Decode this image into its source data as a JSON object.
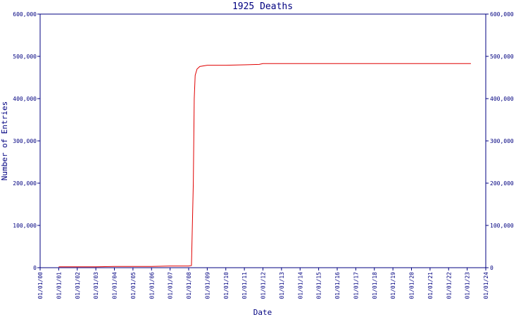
{
  "chart_data": {
    "type": "line",
    "title": "1925 Deaths",
    "x_label": "Date",
    "y_label": "Number of Entries",
    "x": [
      1,
      2,
      3,
      4,
      5,
      6,
      7,
      8,
      8.15,
      8.25,
      8.3,
      8.35,
      8.45,
      8.6,
      9,
      10,
      11,
      11.8,
      12,
      15,
      20,
      23.2
    ],
    "values": [
      2000,
      2000,
      2000,
      3000,
      3000,
      3000,
      4000,
      4000,
      5000,
      200000,
      400000,
      455000,
      470000,
      476000,
      479000,
      479000,
      480000,
      481000,
      483000,
      483000,
      483000,
      483000
    ],
    "color": "#e00000",
    "xlim": [
      0,
      24
    ],
    "xticks": [
      {
        "value": 0,
        "label": "01/01/00"
      },
      {
        "value": 1,
        "label": "01/01/01"
      },
      {
        "value": 2,
        "label": "01/01/02"
      },
      {
        "value": 3,
        "label": "01/01/03"
      },
      {
        "value": 4,
        "label": "01/01/04"
      },
      {
        "value": 5,
        "label": "01/01/05"
      },
      {
        "value": 6,
        "label": "01/01/06"
      },
      {
        "value": 7,
        "label": "01/01/07"
      },
      {
        "value": 8,
        "label": "01/01/08"
      },
      {
        "value": 9,
        "label": "01/01/09"
      },
      {
        "value": 10,
        "label": "01/01/10"
      },
      {
        "value": 11,
        "label": "01/01/11"
      },
      {
        "value": 12,
        "label": "01/01/12"
      },
      {
        "value": 13,
        "label": "01/01/13"
      },
      {
        "value": 14,
        "label": "01/01/14"
      },
      {
        "value": 15,
        "label": "01/01/15"
      },
      {
        "value": 16,
        "label": "01/01/16"
      },
      {
        "value": 17,
        "label": "01/01/17"
      },
      {
        "value": 18,
        "label": "01/01/18"
      },
      {
        "value": 19,
        "label": "01/01/19"
      },
      {
        "value": 20,
        "label": "01/01/20"
      },
      {
        "value": 21,
        "label": "01/01/21"
      },
      {
        "value": 22,
        "label": "01/01/22"
      },
      {
        "value": 23,
        "label": "01/01/23"
      },
      {
        "value": 24,
        "label": "01/01/24"
      }
    ],
    "ylim": [
      0,
      600000
    ],
    "yticks": [
      0,
      {
        "value": 100000,
        "label": "100,000"
      },
      {
        "value": 200000,
        "label": "200,000"
      },
      {
        "value": 300000,
        "label": "300,000"
      },
      {
        "value": 400000,
        "label": "400,000"
      },
      {
        "value": 500000,
        "label": "500,000"
      },
      {
        "value": 600000,
        "label": "600,000"
      }
    ]
  }
}
